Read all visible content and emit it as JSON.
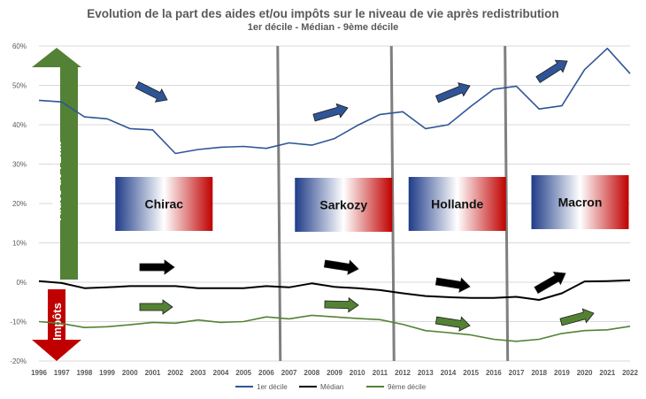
{
  "chart_data": {
    "type": "line",
    "title": "Evolution de la part des aides et/ou impôts sur le niveau de vie après redistribution",
    "subtitle": "1er décile - Médian - 9ème décile",
    "x": [
      "1996",
      "1997",
      "1998",
      "1999",
      "2000",
      "2001",
      "2002",
      "2003",
      "2004",
      "2005",
      "2006",
      "2007",
      "2008",
      "2009",
      "2010",
      "2011",
      "2012",
      "2013",
      "2014",
      "2015",
      "2016",
      "2017",
      "2018",
      "2019",
      "2020",
      "2021",
      "2022"
    ],
    "ylim": [
      -20,
      60
    ],
    "yticks": [
      -20,
      -10,
      0,
      10,
      20,
      30,
      40,
      50,
      60
    ],
    "ytick_labels": [
      "-20%",
      "-10%",
      "0%",
      "10%",
      "20%",
      "30%",
      "40%",
      "50%",
      "60%"
    ],
    "grid": "horizontal",
    "legend_position": "bottom",
    "series": [
      {
        "name": "1er décile",
        "color": "#2f5597",
        "values": [
          46.2,
          45.8,
          42.0,
          41.5,
          39.0,
          38.7,
          32.7,
          33.7,
          34.3,
          34.5,
          34.0,
          35.4,
          34.8,
          36.5,
          39.8,
          42.6,
          43.3,
          39.0,
          40.0,
          44.7,
          49.0,
          49.8,
          44.0,
          44.8,
          54.0,
          59.4,
          53.0
        ]
      },
      {
        "name": "Médian",
        "color": "#000000",
        "values": [
          0.3,
          -0.2,
          -1.5,
          -1.3,
          -1.0,
          -1.0,
          -1.0,
          -1.5,
          -1.5,
          -1.5,
          -1.0,
          -1.3,
          -0.3,
          -1.2,
          -1.5,
          -2.0,
          -2.8,
          -3.5,
          -3.8,
          -4.0,
          -4.0,
          -3.7,
          -4.5,
          -2.8,
          0.2,
          0.3,
          0.5
        ]
      },
      {
        "name": "9ème décile",
        "color": "#548235",
        "values": [
          -10.0,
          -10.5,
          -11.5,
          -11.3,
          -10.8,
          -10.2,
          -10.4,
          -9.6,
          -10.2,
          -10.0,
          -8.8,
          -9.3,
          -8.4,
          -8.8,
          -9.2,
          -9.5,
          -10.7,
          -12.3,
          -12.8,
          -13.4,
          -14.5,
          -15.0,
          -14.5,
          -13.0,
          -12.3,
          -12.1,
          -11.2
        ]
      }
    ],
    "period_dividers_after": [
      "2006",
      "2011",
      "2016"
    ],
    "periods": [
      {
        "label": "Chirac",
        "from": "1996",
        "to": "2006"
      },
      {
        "label": "Sarkozy",
        "from": "2007",
        "to": "2011"
      },
      {
        "label": "Hollande",
        "from": "2012",
        "to": "2016"
      },
      {
        "label": "Macron",
        "from": "2017",
        "to": "2022"
      }
    ],
    "side_labels": {
      "up": "Aides de l'Etat",
      "down": "Impôts"
    },
    "colors": {
      "aides_arrow": "#538135",
      "impots_arrow": "#c00000",
      "flag_blue": "#1f3c88",
      "flag_red": "#c00000",
      "divider": "#7f7f7f"
    }
  }
}
